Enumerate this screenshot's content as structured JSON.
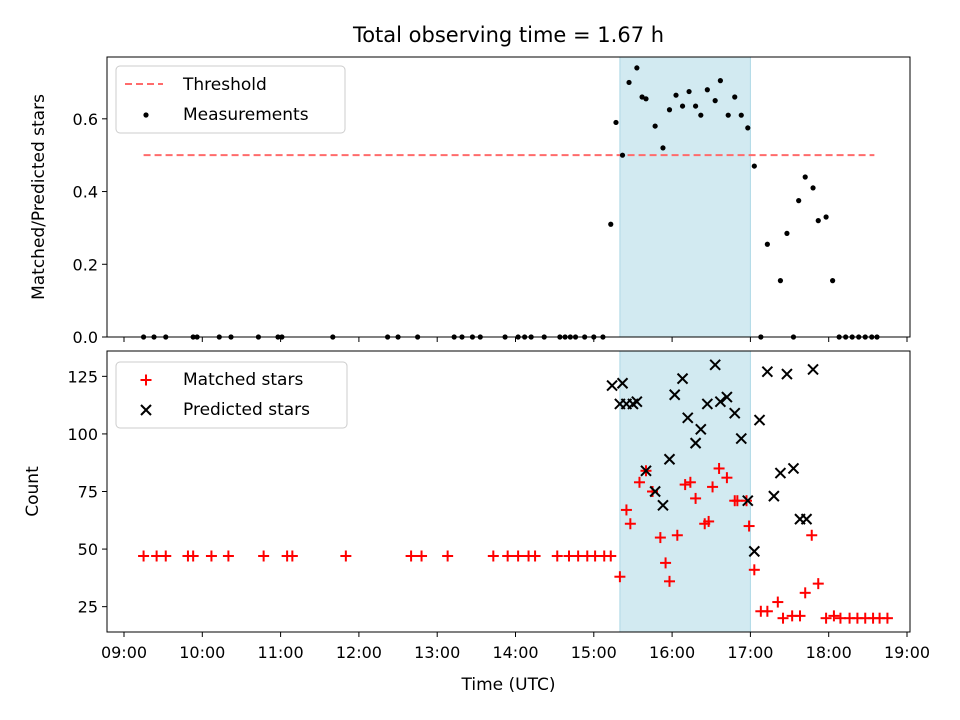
{
  "chart_data": [
    {
      "type": "scatter",
      "title": "Total observing time = 1.67 h",
      "ylabel": "Matched/Predicted stars",
      "xlabel": "",
      "xlim": [
        "09:00",
        "19:00"
      ],
      "ylim": [
        0,
        0.77
      ],
      "yticks": [
        "0.0",
        "0.2",
        "0.4",
        "0.6"
      ],
      "shaded_interval": {
        "start": "15:20",
        "end": "17:00",
        "color": "#add8e6"
      },
      "legend": {
        "position": "upper-left",
        "entries": [
          {
            "label": "Threshold",
            "marker": "dashed-line",
            "color": "#ff6b6b"
          },
          {
            "label": "Measurements",
            "marker": "dot",
            "color": "#000000"
          }
        ]
      },
      "threshold": {
        "value": 0.5,
        "x_start": "09:15",
        "x_end": "18:35"
      },
      "series": [
        {
          "name": "Measurements",
          "color": "#000000",
          "x": [
            "09:15",
            "09:23",
            "09:32",
            "09:53",
            "09:56",
            "10:13",
            "10:22",
            "10:43",
            "10:58",
            "11:01",
            "11:40",
            "12:22",
            "12:30",
            "12:45",
            "13:13",
            "13:19",
            "13:27",
            "13:33",
            "13:52",
            "14:02",
            "14:07",
            "14:12",
            "14:22",
            "14:34",
            "14:38",
            "14:42",
            "14:46",
            "14:53",
            "15:00",
            "15:07",
            "15:13",
            "15:17",
            "15:22",
            "15:27",
            "15:33",
            "15:37",
            "15:40",
            "15:47",
            "15:53",
            "15:58",
            "16:03",
            "16:08",
            "16:13",
            "16:18",
            "16:22",
            "16:27",
            "16:33",
            "16:37",
            "16:43",
            "16:48",
            "16:53",
            "16:58",
            "17:03",
            "17:08",
            "17:13",
            "17:23",
            "17:28",
            "17:33",
            "17:37",
            "17:42",
            "17:48",
            "17:52",
            "17:58",
            "18:03",
            "18:08",
            "18:13",
            "18:18",
            "18:23",
            "18:28",
            "18:33",
            "18:37"
          ],
          "y": [
            0,
            0,
            0,
            0,
            0,
            0,
            0,
            0,
            0,
            0,
            0,
            0,
            0,
            0,
            0,
            0,
            0,
            0,
            0,
            0,
            0,
            0,
            0,
            0,
            0,
            0,
            0,
            0,
            0,
            0,
            0.31,
            0.59,
            0.5,
            0.7,
            0.74,
            0.66,
            0.655,
            0.58,
            0.52,
            0.625,
            0.665,
            0.635,
            0.675,
            0.635,
            0.61,
            0.68,
            0.65,
            0.705,
            0.61,
            0.66,
            0.61,
            0.575,
            0.47,
            0,
            0.255,
            0.155,
            0.285,
            0,
            0.375,
            0.44,
            0.41,
            0.32,
            0.33,
            0.155,
            0,
            0,
            0,
            0,
            0,
            0,
            0
          ]
        }
      ]
    },
    {
      "type": "scatter",
      "title": "",
      "xlabel": "Time (UTC)",
      "ylabel": "Count",
      "xlim": [
        "09:00",
        "19:00"
      ],
      "ylim": [
        14,
        136
      ],
      "xticks": [
        "09:00",
        "10:00",
        "11:00",
        "12:00",
        "13:00",
        "14:00",
        "15:00",
        "16:00",
        "17:00",
        "18:00",
        "19:00"
      ],
      "yticks": [
        "25",
        "50",
        "75",
        "100",
        "125"
      ],
      "shaded_interval": {
        "start": "15:20",
        "end": "17:00",
        "color": "#add8e6"
      },
      "legend": {
        "position": "upper-left",
        "entries": [
          {
            "label": "Matched stars",
            "marker": "plus",
            "color": "#ff0000"
          },
          {
            "label": "Predicted stars",
            "marker": "x",
            "color": "#000000"
          }
        ]
      },
      "series": [
        {
          "name": "Matched stars",
          "color": "#ff0000",
          "x": [
            "09:15",
            "09:25",
            "09:32",
            "09:49",
            "09:53",
            "10:07",
            "10:20",
            "10:47",
            "11:05",
            "11:09",
            "11:50",
            "12:40",
            "12:48",
            "13:08",
            "13:43",
            "13:54",
            "14:02",
            "14:10",
            "14:15",
            "14:32",
            "14:41",
            "14:48",
            "14:55",
            "15:01",
            "15:08",
            "15:13",
            "15:20",
            "15:25",
            "15:28",
            "15:35",
            "15:40",
            "15:45",
            "15:51",
            "15:55",
            "15:58",
            "16:04",
            "16:10",
            "16:14",
            "16:18",
            "16:25",
            "16:28",
            "16:31",
            "16:36",
            "16:42",
            "16:48",
            "16:50",
            "16:57",
            "16:59",
            "17:03",
            "17:08",
            "17:13",
            "17:21",
            "17:25",
            "17:32",
            "17:38",
            "17:42",
            "17:47",
            "17:52",
            "17:58",
            "18:04",
            "18:09",
            "18:16",
            "18:22",
            "18:28",
            "18:34",
            "18:39",
            "18:45"
          ],
          "y": [
            47,
            47,
            47,
            47,
            47,
            47,
            47,
            47,
            47,
            47,
            47,
            47,
            47,
            47,
            47,
            47,
            47,
            47,
            47,
            47,
            47,
            47,
            47,
            47,
            47,
            47,
            38,
            67,
            61,
            79,
            84,
            75,
            55,
            44,
            36,
            56,
            78,
            79,
            72,
            61,
            62,
            77,
            85,
            81,
            71,
            71,
            71,
            60,
            41,
            23,
            23,
            27,
            20,
            21,
            21,
            31,
            56,
            35,
            20,
            21,
            20,
            20,
            20,
            20,
            20,
            20,
            20
          ]
        },
        {
          "name": "Predicted stars",
          "color": "#000000",
          "x": [
            "15:14",
            "15:20",
            "15:22",
            "15:25",
            "15:30",
            "15:33",
            "15:40",
            "15:47",
            "15:53",
            "15:58",
            "16:02",
            "16:08",
            "16:12",
            "16:18",
            "16:22",
            "16:27",
            "16:33",
            "16:37",
            "16:42",
            "16:48",
            "16:53",
            "16:58",
            "17:03",
            "17:07",
            "17:13",
            "17:18",
            "17:23",
            "17:28",
            "17:33",
            "17:38",
            "17:43",
            "17:48"
          ],
          "y": [
            121,
            113,
            122,
            113,
            113,
            114,
            84,
            75,
            69,
            89,
            117,
            124,
            107,
            96,
            102,
            113,
            130,
            114,
            116,
            109,
            98,
            71,
            49,
            106,
            127,
            73,
            83,
            126,
            85,
            63,
            63,
            128
          ]
        }
      ]
    }
  ]
}
